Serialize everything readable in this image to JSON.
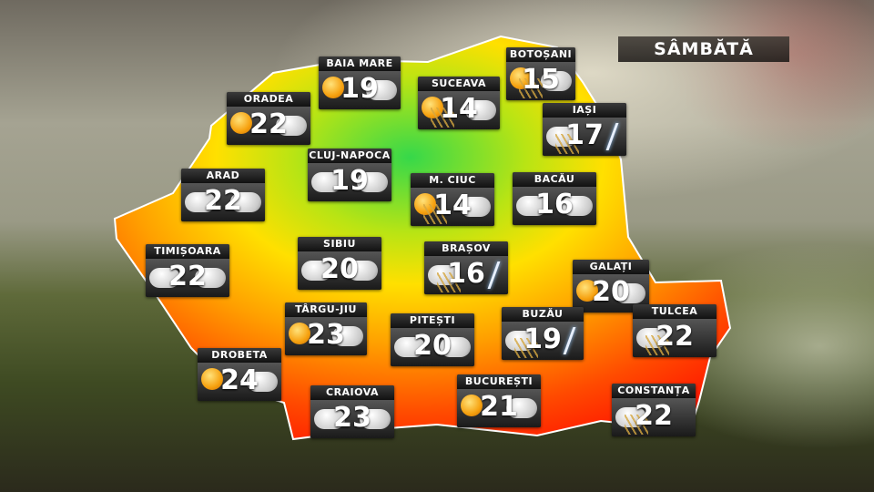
{
  "title": "SÂMBĂTĂ",
  "colors": {
    "cold": "#1fd24a",
    "mild": "#ffe000",
    "warm": "#ff9a00",
    "hot": "#ff2a00"
  },
  "cities": [
    {
      "name": "BAIA MARE",
      "temp": "19",
      "icon": "sun-cloud"
    },
    {
      "name": "ORADEA",
      "temp": "22",
      "icon": "sun-cloud"
    },
    {
      "name": "SUCEAVA",
      "temp": "14",
      "icon": "sun-cloud-rain"
    },
    {
      "name": "BOTOȘANI",
      "temp": "15",
      "icon": "sun-cloud-rain"
    },
    {
      "name": "IAȘI",
      "temp": "17",
      "icon": "thunderstorm"
    },
    {
      "name": "ARAD",
      "temp": "22",
      "icon": "cloudy"
    },
    {
      "name": "CLUJ-NAPOCA",
      "temp": "19",
      "icon": "cloudy"
    },
    {
      "name": "M. CIUC",
      "temp": "14",
      "icon": "sun-cloud-rain"
    },
    {
      "name": "BACĂU",
      "temp": "16",
      "icon": "cloudy"
    },
    {
      "name": "TIMIȘOARA",
      "temp": "22",
      "icon": "cloudy"
    },
    {
      "name": "SIBIU",
      "temp": "20",
      "icon": "cloudy"
    },
    {
      "name": "BRAȘOV",
      "temp": "16",
      "icon": "thunderstorm"
    },
    {
      "name": "GALAȚI",
      "temp": "20",
      "icon": "sun-cloud"
    },
    {
      "name": "TÂRGU-JIU",
      "temp": "23",
      "icon": "sun-cloud"
    },
    {
      "name": "PITEȘTI",
      "temp": "20",
      "icon": "cloudy"
    },
    {
      "name": "BUZĂU",
      "temp": "19",
      "icon": "thunderstorm"
    },
    {
      "name": "TULCEA",
      "temp": "22",
      "icon": "rain"
    },
    {
      "name": "DROBETA",
      "temp": "24",
      "icon": "sun-cloud"
    },
    {
      "name": "CRAIOVA",
      "temp": "23",
      "icon": "cloudy"
    },
    {
      "name": "BUCUREȘTI",
      "temp": "21",
      "icon": "sun-cloud"
    },
    {
      "name": "CONSTANȚA",
      "temp": "22",
      "icon": "rain"
    }
  ]
}
